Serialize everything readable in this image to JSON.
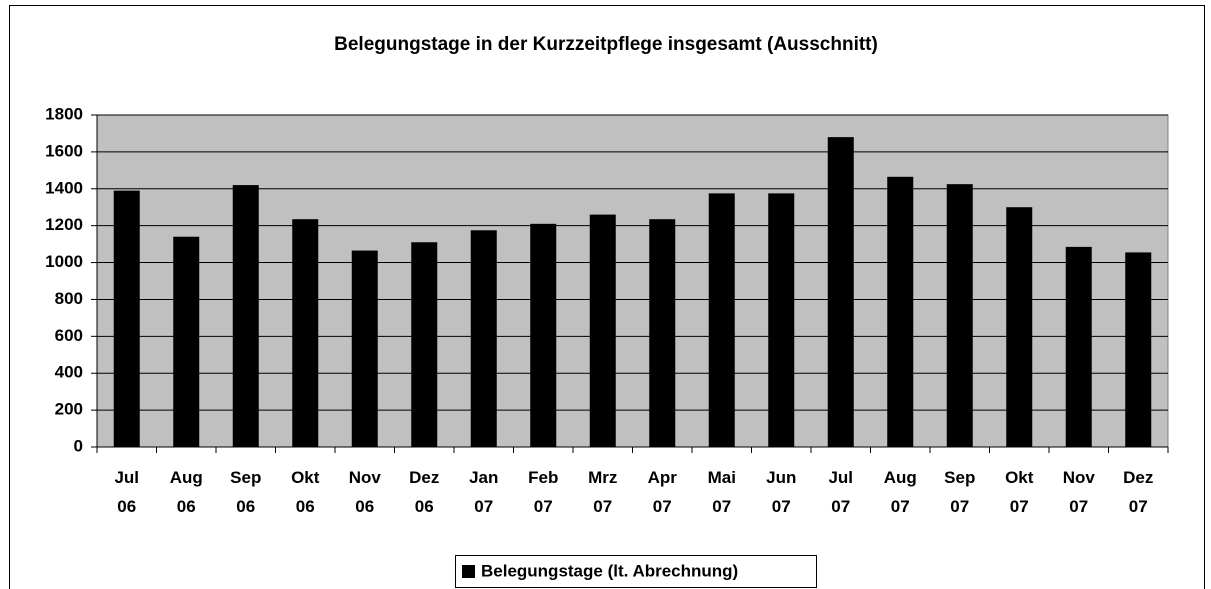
{
  "chart_data": {
    "type": "bar",
    "title": "Belegungstage in der Kurzzeitpflege insgesamt (Ausschnitt)",
    "categories": [
      "Jul 06",
      "Aug 06",
      "Sep 06",
      "Okt 06",
      "Nov 06",
      "Dez 06",
      "Jan 07",
      "Feb 07",
      "Mrz 07",
      "Apr 07",
      "Mai 07",
      "Jun 07",
      "Jul 07",
      "Aug 07",
      "Sep 07",
      "Okt 07",
      "Nov 07",
      "Dez 07"
    ],
    "series": [
      {
        "name": "Belegungstage (lt. Abrechnung)",
        "color": "#000000",
        "values": [
          1390,
          1140,
          1420,
          1235,
          1065,
          1110,
          1175,
          1210,
          1260,
          1235,
          1375,
          1375,
          1680,
          1465,
          1425,
          1300,
          1085,
          1055
        ]
      }
    ],
    "ylim": [
      0,
      1800
    ],
    "yticks": [
      0,
      200,
      400,
      600,
      800,
      1000,
      1200,
      1400,
      1600,
      1800
    ],
    "grid": true,
    "plot_background": "#c0c0c0",
    "legend": "bottom"
  }
}
